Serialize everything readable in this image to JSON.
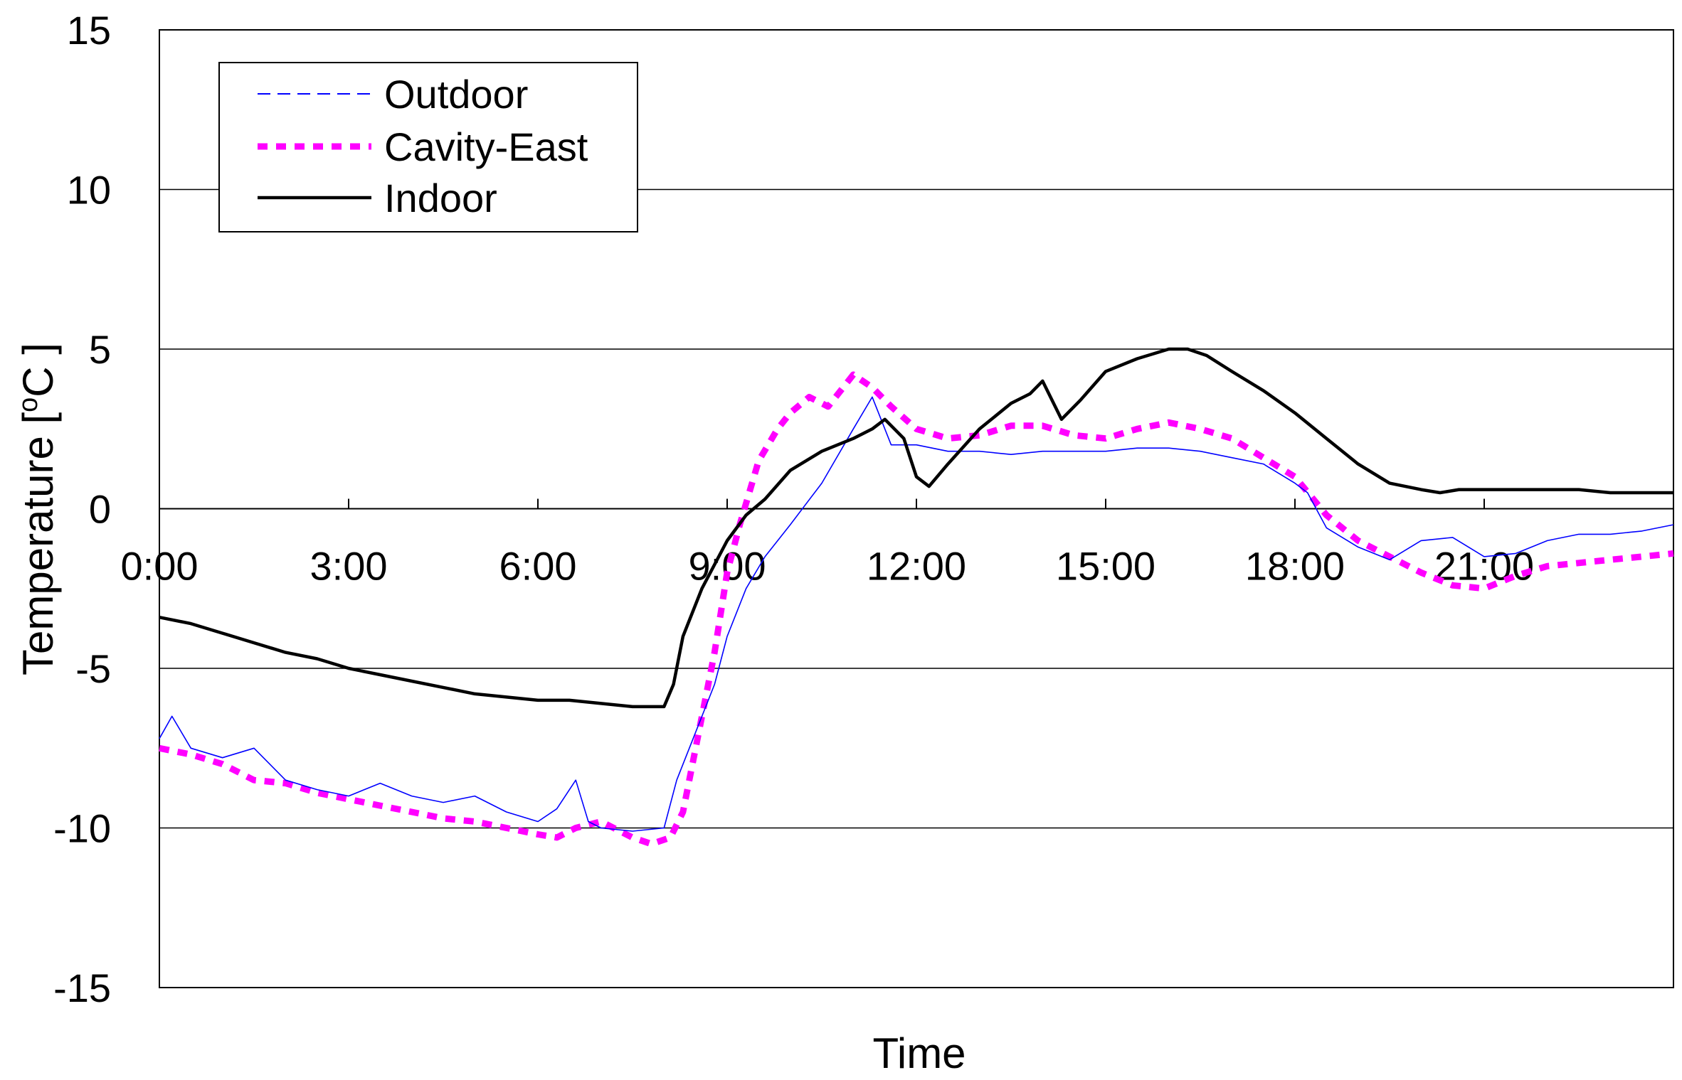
{
  "chart_data": {
    "type": "line",
    "title": "",
    "xlabel": "Time",
    "ylabel": "Temperature [°C ]",
    "ylabel_parts": {
      "main": "Temperature [",
      "sup": "o",
      "unit": "C ]"
    },
    "xlim": [
      0,
      24
    ],
    "ylim": [
      -15,
      15
    ],
    "y_ticks": [
      15,
      10,
      5,
      0,
      -5,
      -10,
      -15
    ],
    "y_tick_labels": [
      "15",
      "10",
      "5",
      "0",
      "-5",
      "-10",
      "-15"
    ],
    "x_ticks": [
      0,
      3,
      6,
      9,
      12,
      15,
      18,
      21
    ],
    "x_tick_labels": [
      "0:00",
      "3:00",
      "6:00",
      "9:00",
      "12:00",
      "15:00",
      "18:00",
      "21:00"
    ],
    "grid": {
      "horizontal": true,
      "vertical": false
    },
    "legend": {
      "placement": "top-left",
      "entries": [
        "Outdoor",
        "Cavity-East",
        "Indoor"
      ]
    },
    "series": [
      {
        "name": "Outdoor",
        "color": "#0000ff",
        "style": "thin-dashed",
        "x": [
          0,
          0.2,
          0.5,
          1,
          1.5,
          2,
          2.5,
          3,
          3.5,
          4,
          4.5,
          5,
          5.5,
          6,
          6.3,
          6.6,
          6.8,
          7,
          7.5,
          8,
          8.2,
          8.5,
          8.8,
          9,
          9.3,
          9.6,
          10,
          10.5,
          11,
          11.3,
          11.6,
          12,
          12.5,
          13,
          13.5,
          14,
          14.5,
          15,
          15.5,
          16,
          16.5,
          17,
          17.5,
          18,
          18.2,
          18.5,
          19,
          19.5,
          20,
          20.5,
          21,
          21.5,
          22,
          22.5,
          23,
          23.5,
          24
        ],
        "y": [
          -7.2,
          -6.5,
          -7.5,
          -7.8,
          -7.5,
          -8.5,
          -8.8,
          -9.0,
          -8.6,
          -9.0,
          -9.2,
          -9.0,
          -9.5,
          -9.8,
          -9.4,
          -8.5,
          -9.8,
          -10.0,
          -10.1,
          -10.0,
          -8.5,
          -7.0,
          -5.5,
          -4.0,
          -2.5,
          -1.5,
          -0.5,
          0.8,
          2.5,
          3.5,
          2.0,
          2.0,
          1.8,
          1.8,
          1.7,
          1.8,
          1.8,
          1.8,
          1.9,
          1.9,
          1.8,
          1.6,
          1.4,
          0.8,
          0.5,
          -0.6,
          -1.2,
          -1.6,
          -1.0,
          -0.9,
          -1.5,
          -1.4,
          -1.0,
          -0.8,
          -0.8,
          -0.7,
          -0.5
        ]
      },
      {
        "name": "Cavity-East",
        "color": "#ff00ff",
        "style": "thick-dashed",
        "x": [
          0,
          0.5,
          1,
          1.5,
          2,
          2.5,
          3,
          3.5,
          4,
          4.5,
          5,
          5.5,
          6,
          6.3,
          6.6,
          7,
          7.5,
          7.8,
          8.1,
          8.3,
          8.5,
          8.8,
          9,
          9.2,
          9.5,
          9.8,
          10,
          10.3,
          10.6,
          11,
          11.3,
          11.6,
          12,
          12.5,
          13,
          13.5,
          14,
          14.5,
          15,
          15.5,
          16,
          16.5,
          17,
          17.5,
          18,
          18.5,
          19,
          19.5,
          20,
          20.5,
          21,
          21.5,
          22,
          22.5,
          23,
          23.5,
          24
        ],
        "y": [
          -7.5,
          -7.7,
          -8.0,
          -8.5,
          -8.6,
          -8.9,
          -9.1,
          -9.3,
          -9.5,
          -9.7,
          -9.8,
          -10.0,
          -10.2,
          -10.3,
          -10.0,
          -9.8,
          -10.3,
          -10.5,
          -10.3,
          -9.5,
          -7.5,
          -4.5,
          -2.0,
          -0.5,
          1.5,
          2.5,
          3.0,
          3.5,
          3.2,
          4.2,
          3.8,
          3.2,
          2.5,
          2.2,
          2.3,
          2.6,
          2.6,
          2.3,
          2.2,
          2.5,
          2.7,
          2.5,
          2.2,
          1.6,
          1.0,
          -0.2,
          -1.0,
          -1.5,
          -2.0,
          -2.4,
          -2.5,
          -2.1,
          -1.8,
          -1.7,
          -1.6,
          -1.5,
          -1.4
        ]
      },
      {
        "name": "Indoor",
        "color": "#000000",
        "style": "solid",
        "x": [
          0,
          0.5,
          1,
          1.5,
          2,
          2.5,
          3,
          3.5,
          4,
          4.5,
          5,
          5.5,
          6,
          6.5,
          7,
          7.5,
          8,
          8.15,
          8.3,
          8.6,
          9,
          9.3,
          9.6,
          10,
          10.5,
          11,
          11.3,
          11.5,
          11.8,
          12,
          12.2,
          12.5,
          13,
          13.5,
          13.8,
          14,
          14.3,
          14.6,
          15,
          15.5,
          16,
          16.3,
          16.6,
          17,
          17.5,
          18,
          18.5,
          19,
          19.5,
          20,
          20.3,
          20.6,
          21,
          21.5,
          22,
          22.5,
          23,
          23.5,
          24
        ],
        "y": [
          -3.4,
          -3.6,
          -3.9,
          -4.2,
          -4.5,
          -4.7,
          -5.0,
          -5.2,
          -5.4,
          -5.6,
          -5.8,
          -5.9,
          -6.0,
          -6.0,
          -6.1,
          -6.2,
          -6.2,
          -5.5,
          -4.0,
          -2.5,
          -1.0,
          -0.2,
          0.3,
          1.2,
          1.8,
          2.2,
          2.5,
          2.8,
          2.2,
          1.0,
          0.7,
          1.4,
          2.5,
          3.3,
          3.6,
          4.0,
          2.8,
          3.4,
          4.3,
          4.7,
          5.0,
          5.0,
          4.8,
          4.3,
          3.7,
          3.0,
          2.2,
          1.4,
          0.8,
          0.6,
          0.5,
          0.6,
          0.6,
          0.6,
          0.6,
          0.6,
          0.5,
          0.5,
          0.5
        ]
      }
    ]
  }
}
